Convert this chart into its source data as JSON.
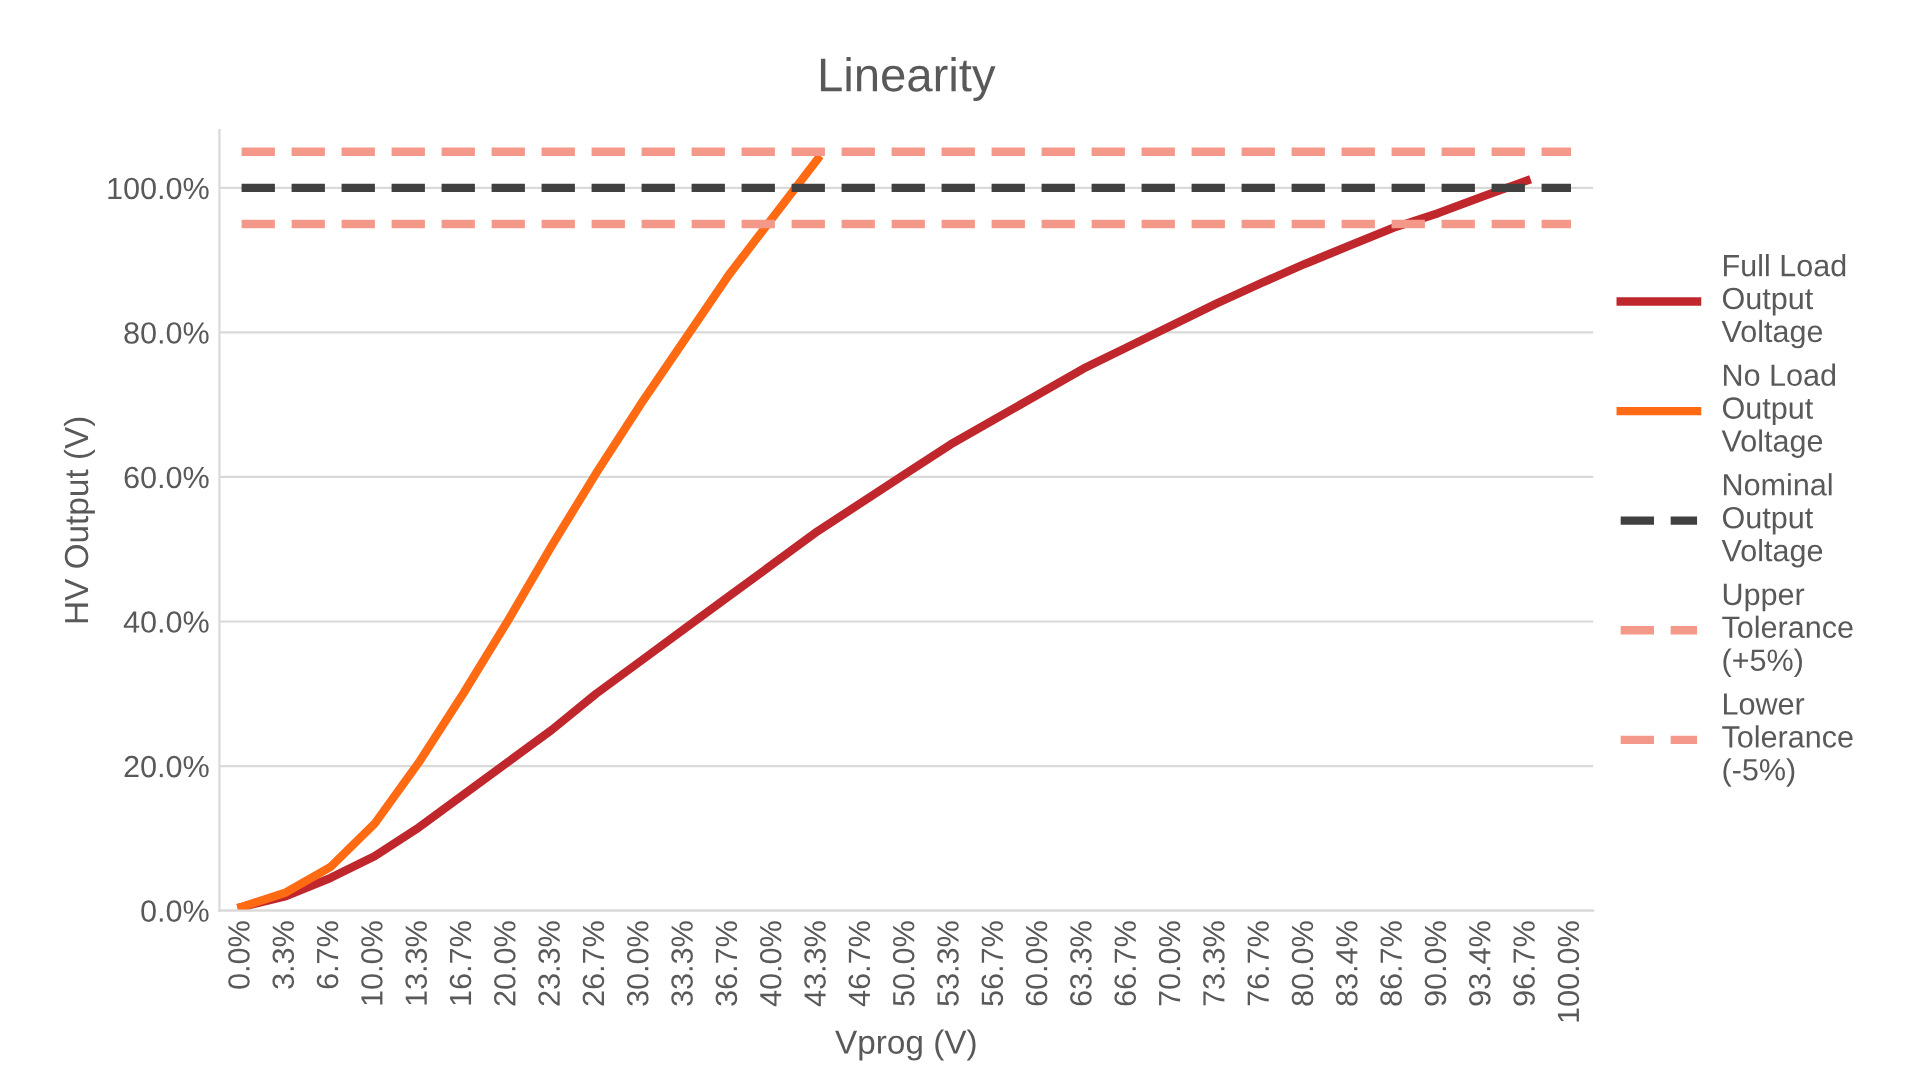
{
  "chart_data": {
    "type": "line",
    "title": "Linearity",
    "xlabel": "Vprog (V)",
    "ylabel": "HV Output (V)",
    "categories": [
      "0.0%",
      "3.3%",
      "6.7%",
      "10.0%",
      "13.3%",
      "16.7%",
      "20.0%",
      "23.3%",
      "26.7%",
      "30.0%",
      "33.3%",
      "36.7%",
      "40.0%",
      "43.3%",
      "46.7%",
      "50.0%",
      "53.3%",
      "56.7%",
      "60.0%",
      "63.3%",
      "66.7%",
      "70.0%",
      "73.3%",
      "76.7%",
      "80.0%",
      "83.4%",
      "86.7%",
      "90.0%",
      "93.4%",
      "96.7%",
      "100.0%"
    ],
    "series": [
      {
        "name": "Full Load Output Voltage",
        "color": "#c0272d",
        "values": [
          0.5,
          2,
          4.5,
          7.5,
          11.5,
          16,
          20.5,
          25,
          30,
          34.5,
          39,
          43.5,
          48,
          52.5,
          56.5,
          60.5,
          64.5,
          68,
          71.5,
          75,
          78,
          81,
          84,
          86.8,
          89.5,
          92,
          94.5,
          96.5,
          98.8,
          101,
          null
        ]
      },
      {
        "name": "No Load Output Voltage",
        "color": "#ff6a13",
        "values": [
          0.5,
          2.5,
          6,
          12,
          20.5,
          30,
          40,
          50.5,
          60.5,
          70,
          79,
          88,
          96,
          104,
          null,
          null,
          null,
          null,
          null,
          null,
          null,
          null,
          null,
          null,
          null,
          null,
          null,
          null,
          null,
          null,
          null
        ]
      },
      {
        "name": "Nominal Output Voltage",
        "color": "#404040",
        "line_style": "dashed",
        "values": [
          100,
          100,
          100,
          100,
          100,
          100,
          100,
          100,
          100,
          100,
          100,
          100,
          100,
          100,
          100,
          100,
          100,
          100,
          100,
          100,
          100,
          100,
          100,
          100,
          100,
          100,
          100,
          100,
          100,
          100,
          100
        ]
      },
      {
        "name": "Upper Tolerance (+5%)",
        "color": "#f4998a",
        "line_style": "dashed",
        "values": [
          105,
          105,
          105,
          105,
          105,
          105,
          105,
          105,
          105,
          105,
          105,
          105,
          105,
          105,
          105,
          105,
          105,
          105,
          105,
          105,
          105,
          105,
          105,
          105,
          105,
          105,
          105,
          105,
          105,
          105,
          105
        ]
      },
      {
        "name": "Lower Tolerance (-5%)",
        "color": "#f4998a",
        "line_style": "dashed",
        "values": [
          95,
          95,
          95,
          95,
          95,
          95,
          95,
          95,
          95,
          95,
          95,
          95,
          95,
          95,
          95,
          95,
          95,
          95,
          95,
          95,
          95,
          95,
          95,
          95,
          95,
          95,
          95,
          95,
          95,
          95,
          95
        ]
      }
    ],
    "ylim": [
      0,
      108
    ],
    "yticks": [
      {
        "value": 0,
        "label": "0.0%"
      },
      {
        "value": 20,
        "label": "20.0%"
      },
      {
        "value": 40,
        "label": "40.0%"
      },
      {
        "value": 60,
        "label": "60.0%"
      },
      {
        "value": 80,
        "label": "80.0%"
      },
      {
        "value": 100,
        "label": "100.0%"
      }
    ],
    "grid": "y",
    "legend": "right"
  }
}
